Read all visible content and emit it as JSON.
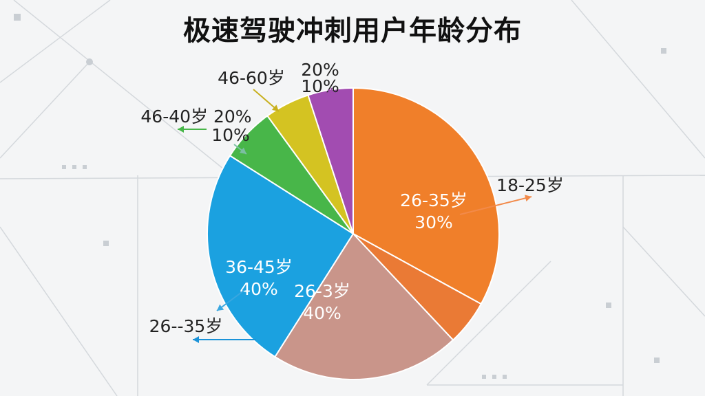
{
  "title": "极速驾驶冲刺用户年龄分布",
  "chart_data": {
    "type": "pie",
    "title": "极速驾驶冲刺用户年龄分布",
    "slices": [
      {
        "inner_label": "26-35岁",
        "inner_value": "30%",
        "outer_label": "18-25岁",
        "value": 33,
        "color": "#f07f2a"
      },
      {
        "inner_label": "",
        "inner_value": "",
        "outer_label": "",
        "value": 5,
        "color": "#ea7a35"
      },
      {
        "inner_label": "26-3岁",
        "inner_value": "40%",
        "outer_label": "",
        "value": 21,
        "color": "#c9958a"
      },
      {
        "inner_label": "36-45岁",
        "inner_value": "40%",
        "outer_label": "26-‑35岁",
        "value": 25,
        "color": "#1ba1e0"
      },
      {
        "inner_label": "",
        "inner_value": "",
        "outer_label": "46-40岁 20%",
        "outer_sub": "10%",
        "value": 6,
        "color": "#48b649"
      },
      {
        "inner_label": "",
        "inner_value": "",
        "outer_label": "46-60岁",
        "value": 5,
        "color": "#d4c322"
      },
      {
        "inner_label": "",
        "inner_value": "",
        "outer_label": "20%",
        "outer_sub": "10%",
        "value": 5,
        "color": "#a24cb1"
      }
    ]
  }
}
